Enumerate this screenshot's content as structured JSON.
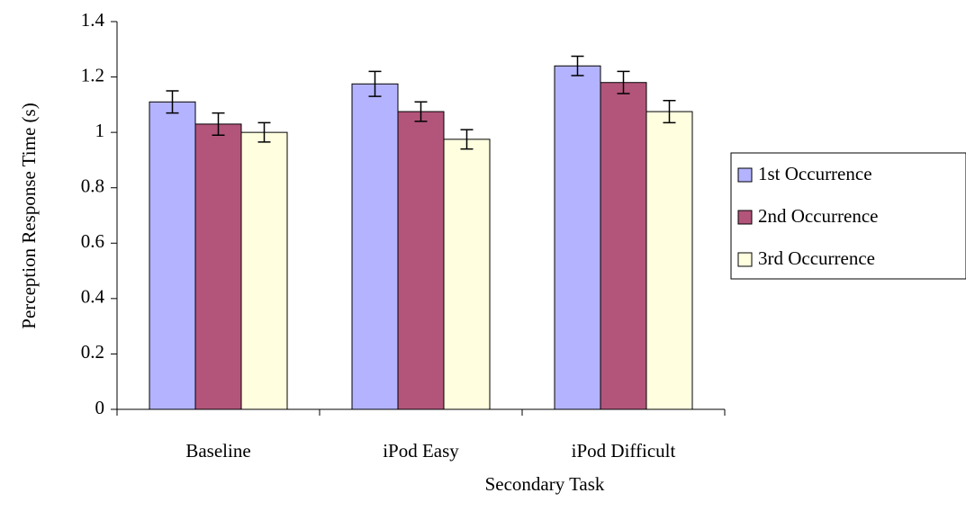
{
  "chart_data": {
    "type": "bar",
    "x_label": "Secondary Task",
    "y_label": "Perception Response Time (s)",
    "categories": [
      "Baseline",
      "iPod Easy",
      "iPod Difficult"
    ],
    "series": [
      {
        "name": "1st Occurrence",
        "color": "#b3b3ff",
        "values": [
          1.11,
          1.175,
          1.24
        ],
        "errors": [
          0.04,
          0.045,
          0.035
        ]
      },
      {
        "name": "2nd Occurrence",
        "color": "#b3557b",
        "values": [
          1.03,
          1.075,
          1.18
        ],
        "errors": [
          0.04,
          0.035,
          0.04
        ]
      },
      {
        "name": "3rd Occurrence",
        "color": "#ffffe0",
        "values": [
          1.0,
          0.975,
          1.075
        ],
        "errors": [
          0.035,
          0.035,
          0.04
        ]
      }
    ],
    "ylim": [
      0,
      1.4
    ],
    "yticks": [
      0,
      0.2,
      0.4,
      0.6,
      0.8,
      1,
      1.2,
      1.4
    ],
    "grid": false,
    "legend": "right"
  }
}
